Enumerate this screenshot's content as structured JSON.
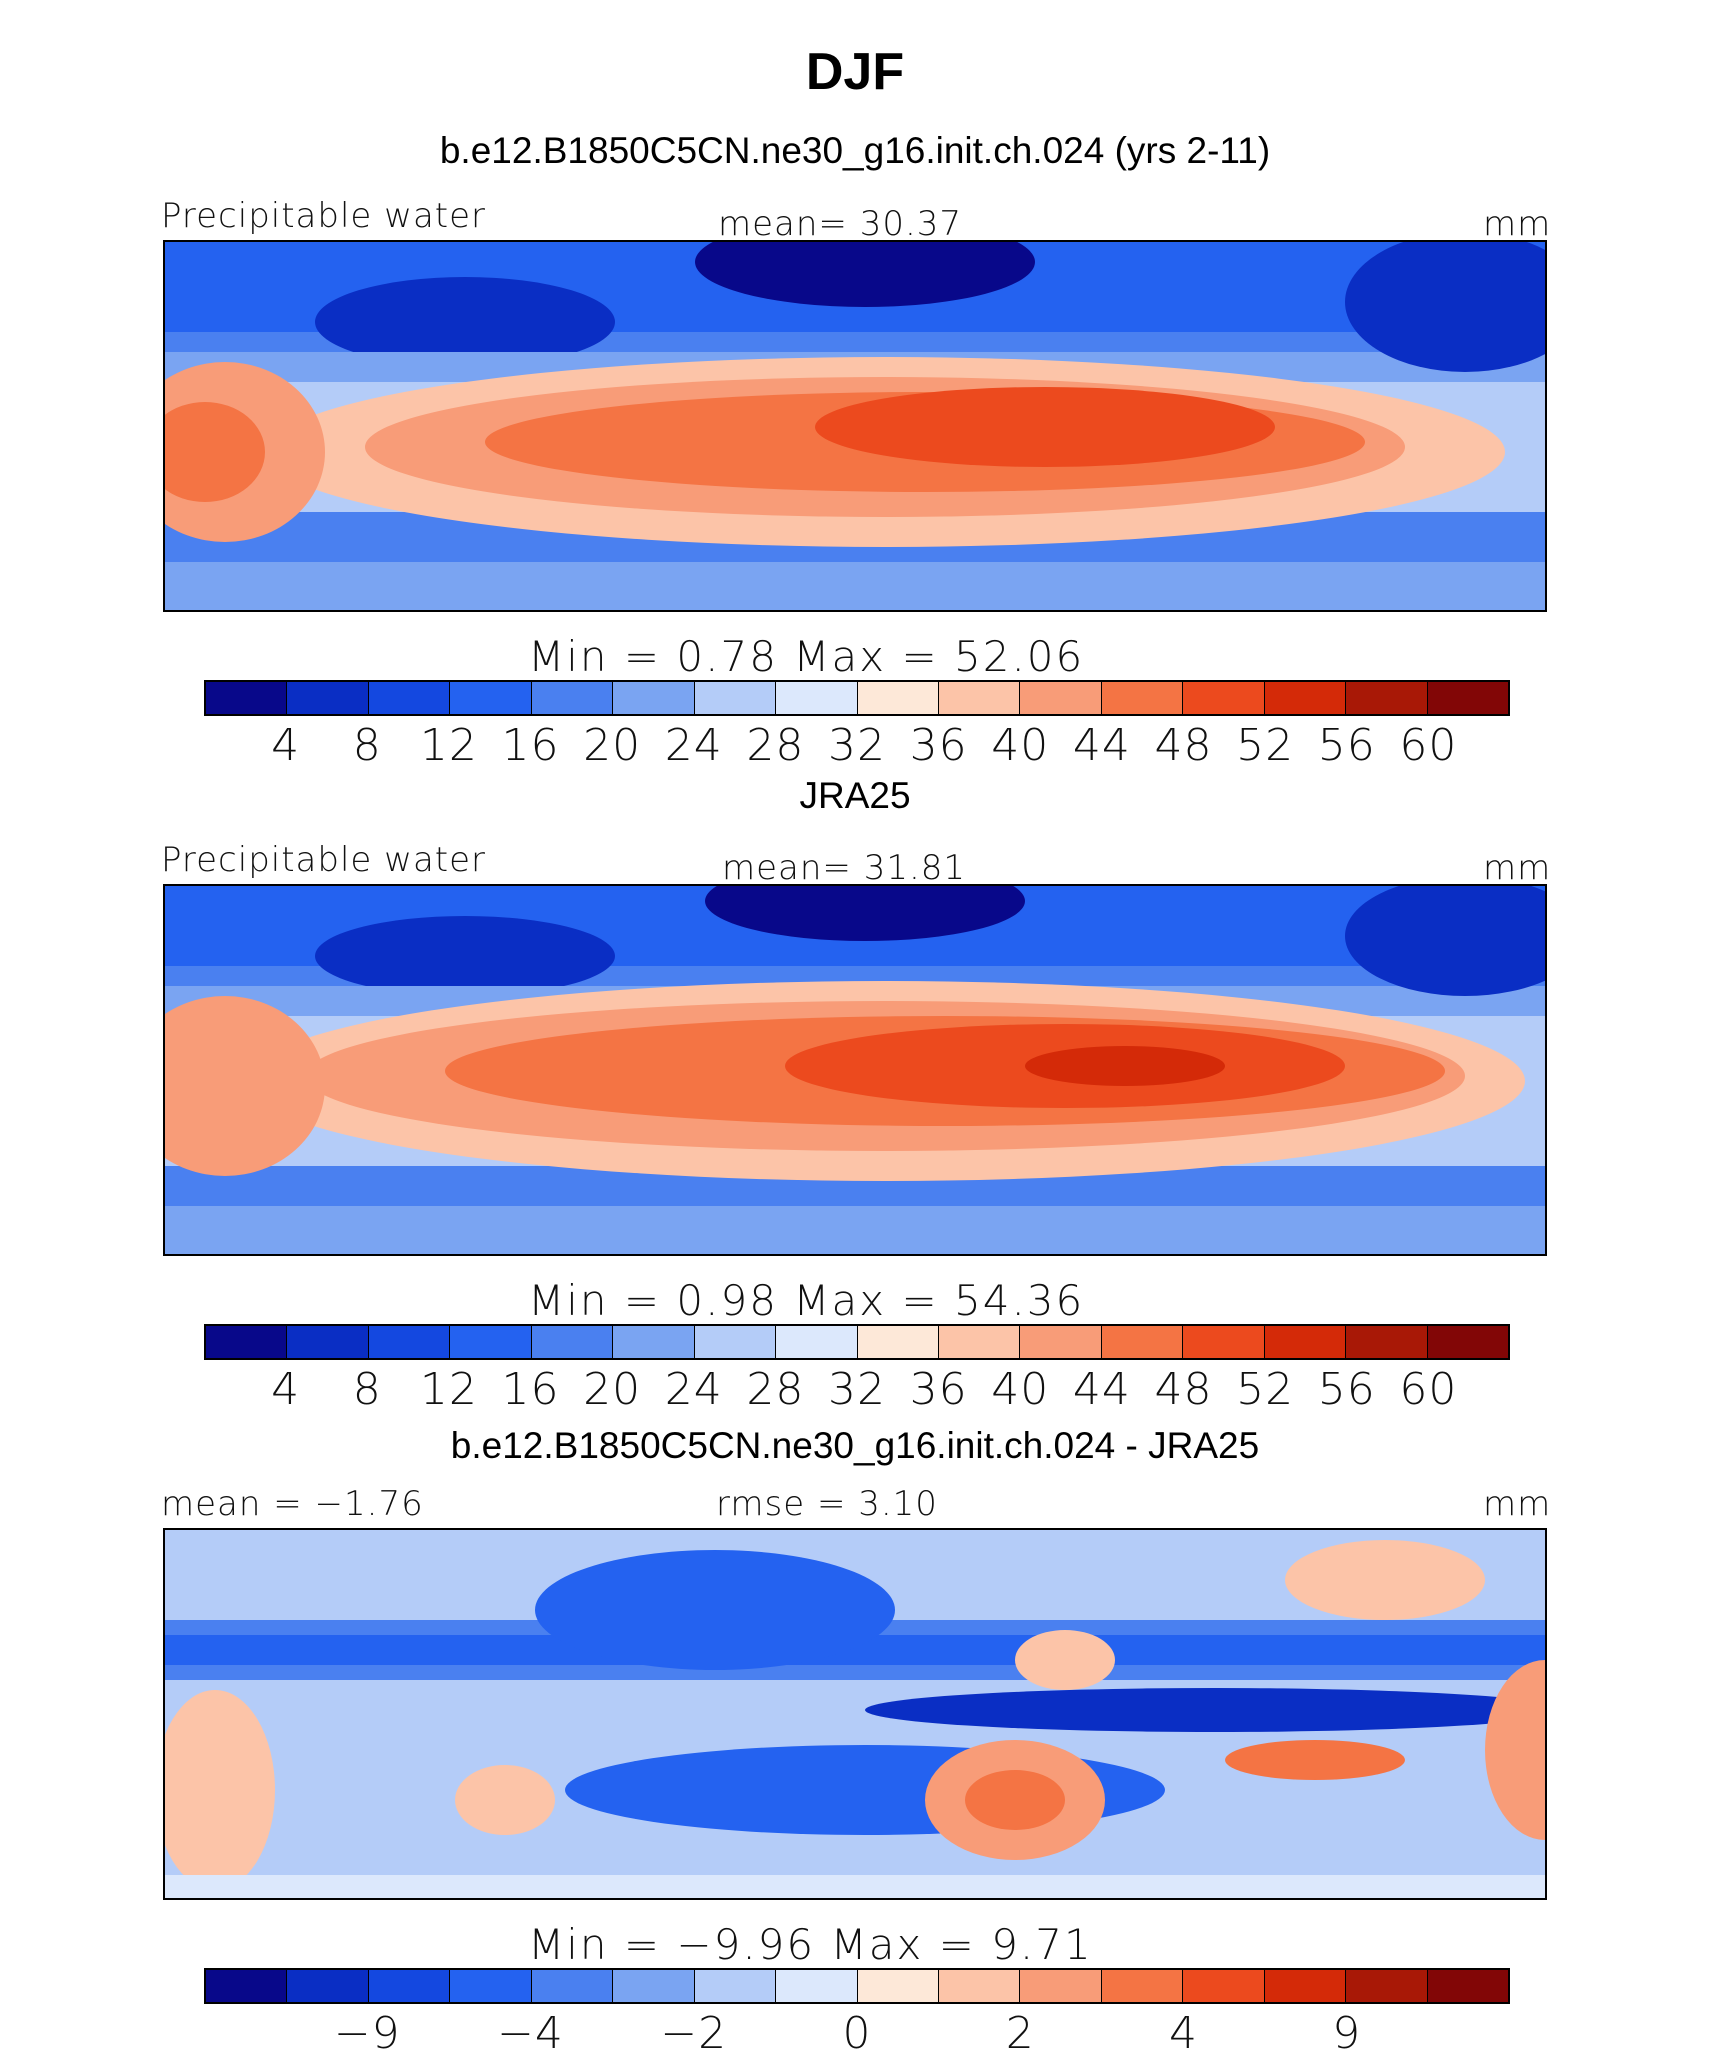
{
  "figure": {
    "title": "DJF",
    "colors": [
      "#08088a",
      "#0a2ec4",
      "#1448e0",
      "#2462f0",
      "#4a80f0",
      "#7aa4f2",
      "#b4ccf8",
      "#dce8fc",
      "#fde8d8",
      "#fcc4a8",
      "#f89c78",
      "#f47444",
      "#ec4a1e",
      "#d42a08",
      "#a81806",
      "#820606"
    ]
  },
  "panels": [
    {
      "title": "b.e12.B1850C5CN.ne30_g16.init.ch.024 (yrs 2-11)",
      "left_label": "Precipitable water",
      "center_label": "mean=   30.37",
      "units": "mm",
      "minmax": "Min  =     0.78  Max  =    52.06",
      "ticks": [
        "4",
        "8",
        "12",
        "16",
        "20",
        "24",
        "28",
        "32",
        "36",
        "40",
        "44",
        "48",
        "52",
        "56",
        "60"
      ]
    },
    {
      "title": "JRA25",
      "left_label": "Precipitable water",
      "center_label": "mean=   31.81",
      "units": "mm",
      "minmax": "Min  =     0.98  Max  =    54.36",
      "ticks": [
        "4",
        "8",
        "12",
        "16",
        "20",
        "24",
        "28",
        "32",
        "36",
        "40",
        "44",
        "48",
        "52",
        "56",
        "60"
      ]
    },
    {
      "title": "b.e12.B1850C5CN.ne30_g16.init.ch.024 - JRA25",
      "left_label": "mean  =   −1.76",
      "center_label": "rmse  =     3.10",
      "units": "mm",
      "minmax": "Min  =   −9.96  Max  =     9.71",
      "ticks": [
        "−9",
        "−4",
        "−2",
        "0",
        "2",
        "4",
        "9"
      ]
    }
  ],
  "chart_data": [
    {
      "type": "heatmap",
      "title": "b.e12.B1850C5CN.ne30_g16.init.ch.024 (yrs 2-11)",
      "variable": "Precipitable water",
      "units": "mm",
      "mean": 30.37,
      "min": 0.78,
      "max": 52.06,
      "levels": [
        4,
        8,
        12,
        16,
        20,
        24,
        28,
        32,
        36,
        40,
        44,
        48,
        52,
        56,
        60
      ]
    },
    {
      "type": "heatmap",
      "title": "JRA25",
      "variable": "Precipitable water",
      "units": "mm",
      "mean": 31.81,
      "min": 0.98,
      "max": 54.36,
      "levels": [
        4,
        8,
        12,
        16,
        20,
        24,
        28,
        32,
        36,
        40,
        44,
        48,
        52,
        56,
        60
      ]
    },
    {
      "type": "heatmap",
      "title": "b.e12.B1850C5CN.ne30_g16.init.ch.024 - JRA25",
      "units": "mm",
      "mean": -1.76,
      "rmse": 3.1,
      "min": -9.96,
      "max": 9.71,
      "labeled_levels": [
        -9,
        -4,
        -2,
        0,
        2,
        4,
        9
      ]
    }
  ]
}
